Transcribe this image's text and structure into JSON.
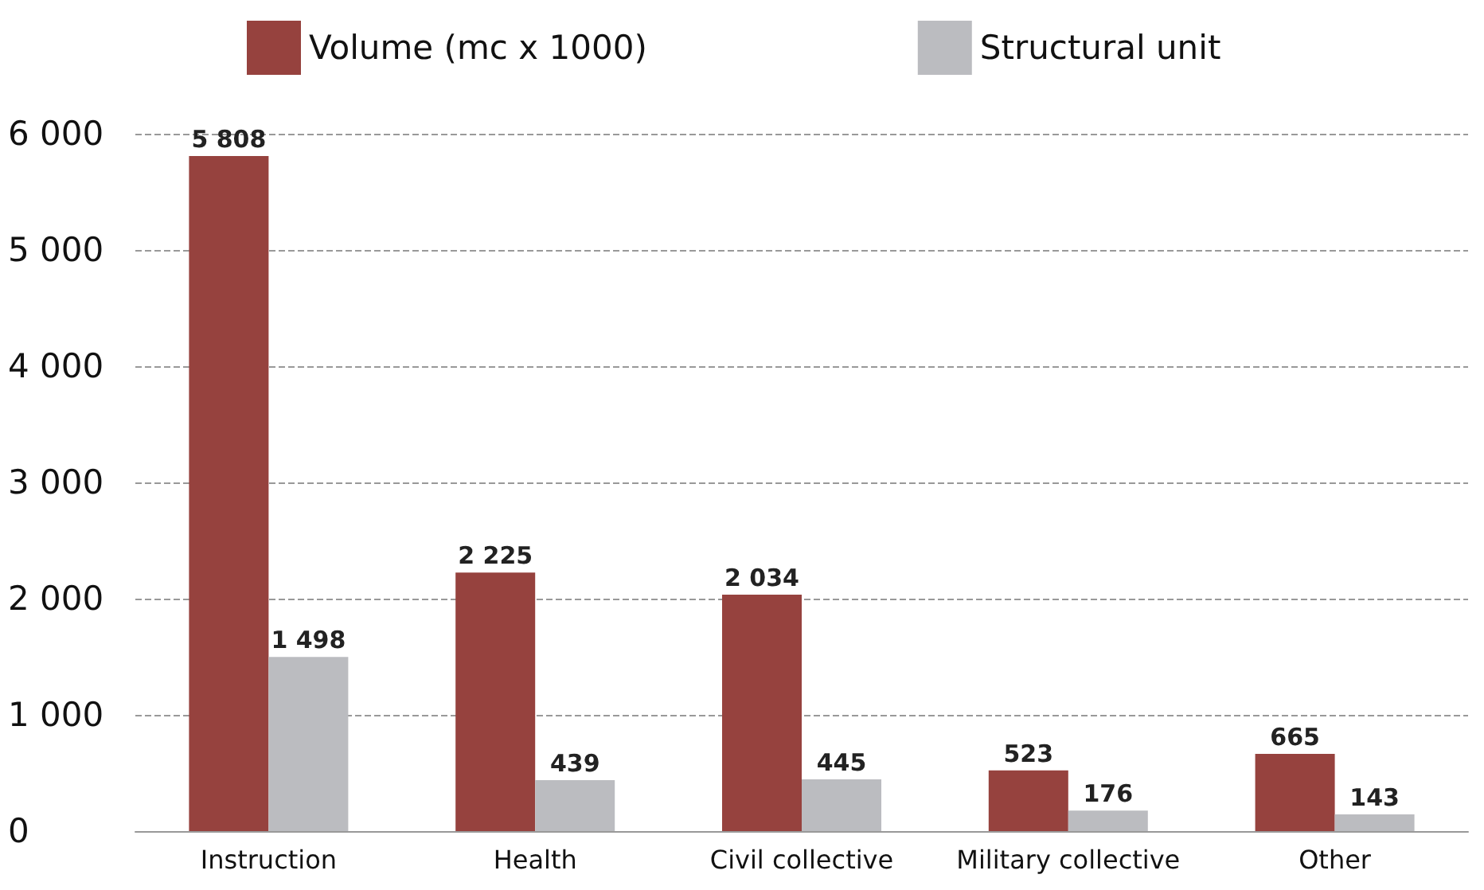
{
  "chart_data": {
    "type": "bar",
    "categories": [
      "Instruction",
      "Health",
      "Civil collective",
      "Military collective",
      "Other"
    ],
    "series": [
      {
        "name": "Volume (mc x 1000)",
        "color": "#96423e",
        "values": [
          5808,
          2225,
          2034,
          523,
          665
        ],
        "value_labels": [
          "5 808",
          "2 225",
          "2 034",
          "523",
          "665"
        ]
      },
      {
        "name": "Structural unit",
        "color": "#bbbcc0",
        "values": [
          1498,
          439,
          445,
          176,
          143
        ],
        "value_labels": [
          "1 498",
          "439",
          "445",
          "176",
          "143"
        ]
      }
    ],
    "ylim": [
      0,
      6000
    ],
    "yticks": [
      {
        "value": 0,
        "label": "0"
      },
      {
        "value": 1000,
        "label": "1 000"
      },
      {
        "value": 2000,
        "label": "2 000"
      },
      {
        "value": 3000,
        "label": "3 000"
      },
      {
        "value": 4000,
        "label": "4 000"
      },
      {
        "value": 5000,
        "label": "5 000"
      },
      {
        "value": 6000,
        "label": "6 000"
      }
    ],
    "grid": "y",
    "legend": "top"
  }
}
